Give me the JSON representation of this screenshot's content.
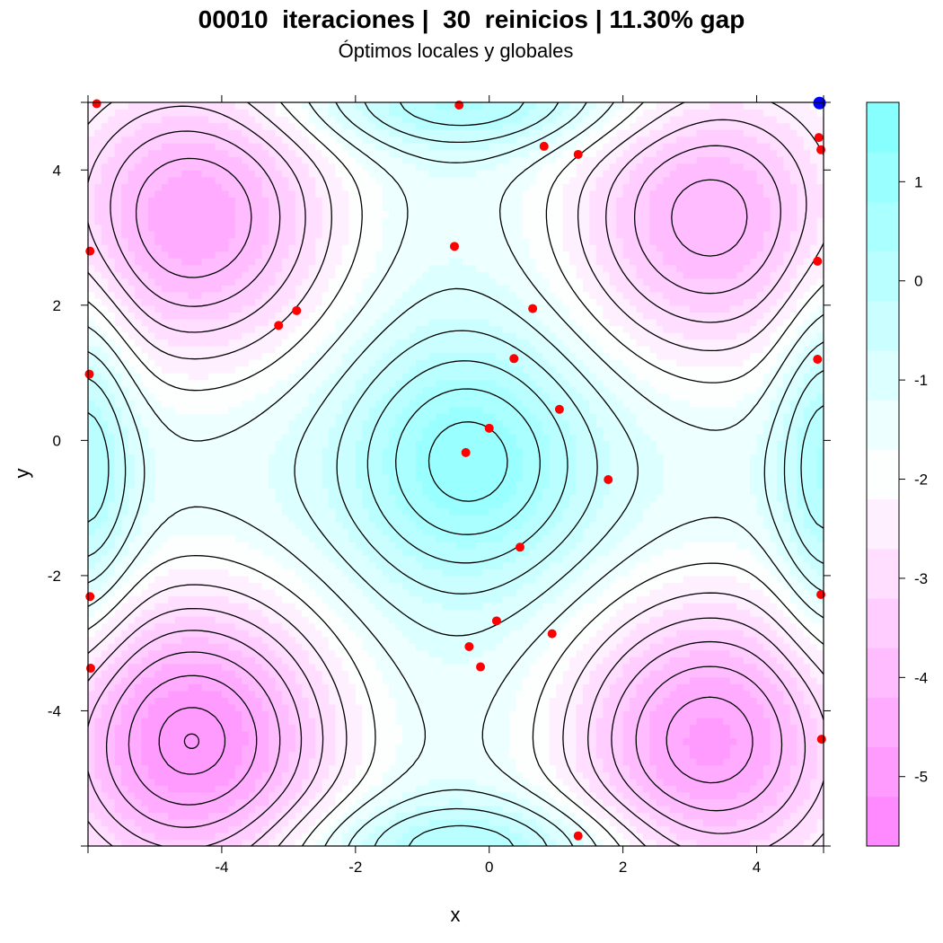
{
  "chart_data": {
    "type": "contour",
    "title": "00010  iteraciones |  30  reinicios | 11.30% gap",
    "subtitle": "Óptimos locales y globales",
    "xlabel": "x",
    "ylabel": "y",
    "xlim": [
      -6,
      5
    ],
    "ylim": [
      -6,
      5
    ],
    "x_ticks": [
      -4,
      -2,
      0,
      2,
      4
    ],
    "y_ticks": [
      -4,
      -2,
      0,
      2,
      4
    ],
    "colorbar": {
      "range": [
        -5.7,
        1.8
      ],
      "ticks": [
        -5,
        -4,
        -3,
        -2,
        -1,
        0,
        1
      ],
      "low_color": "#ff80ff",
      "mid_color": "#ffffff",
      "high_color": "#80ffff"
    },
    "minima": [
      {
        "x": -4.45,
        "y": -4.45,
        "depth": 4.2
      },
      {
        "x": 3.3,
        "y": -4.45,
        "depth": 3.8
      },
      {
        "x": -4.45,
        "y": 3.3,
        "depth": 3.5
      },
      {
        "x": 3.3,
        "y": 3.3,
        "depth": 3.2
      }
    ],
    "maximum": {
      "x": -0.3,
      "y": -0.3,
      "height": 2.3
    },
    "restart_points": [
      {
        "x": -5.87,
        "y": 4.98
      },
      {
        "x": -0.45,
        "y": 4.96
      },
      {
        "x": 0.82,
        "y": 4.35
      },
      {
        "x": 1.33,
        "y": 4.23
      },
      {
        "x": 4.93,
        "y": 4.48
      },
      {
        "x": 4.96,
        "y": 4.3
      },
      {
        "x": -5.97,
        "y": 2.8
      },
      {
        "x": -0.52,
        "y": 2.87
      },
      {
        "x": 4.91,
        "y": 2.65
      },
      {
        "x": -2.88,
        "y": 1.92
      },
      {
        "x": -3.15,
        "y": 1.7
      },
      {
        "x": 0.65,
        "y": 1.95
      },
      {
        "x": 0.37,
        "y": 1.21
      },
      {
        "x": 4.91,
        "y": 1.2
      },
      {
        "x": -5.98,
        "y": 0.98
      },
      {
        "x": 1.05,
        "y": 0.46
      },
      {
        "x": 0.0,
        "y": 0.18
      },
      {
        "x": -0.35,
        "y": -0.18
      },
      {
        "x": 1.78,
        "y": -0.58
      },
      {
        "x": 0.46,
        "y": -1.58
      },
      {
        "x": -5.97,
        "y": -2.31
      },
      {
        "x": 4.96,
        "y": -2.28
      },
      {
        "x": 0.11,
        "y": -2.67
      },
      {
        "x": 0.94,
        "y": -2.86
      },
      {
        "x": -0.3,
        "y": -3.05
      },
      {
        "x": -5.96,
        "y": -3.37
      },
      {
        "x": -0.13,
        "y": -3.35
      },
      {
        "x": 4.97,
        "y": -4.42
      },
      {
        "x": 1.33,
        "y": -5.85
      }
    ],
    "best_point": {
      "x": 4.94,
      "y": 4.99
    },
    "global_optimum_marker": {
      "x": -4.45,
      "y": -4.45
    },
    "restart_color": "#ff0000",
    "best_color": "#0000ff"
  }
}
